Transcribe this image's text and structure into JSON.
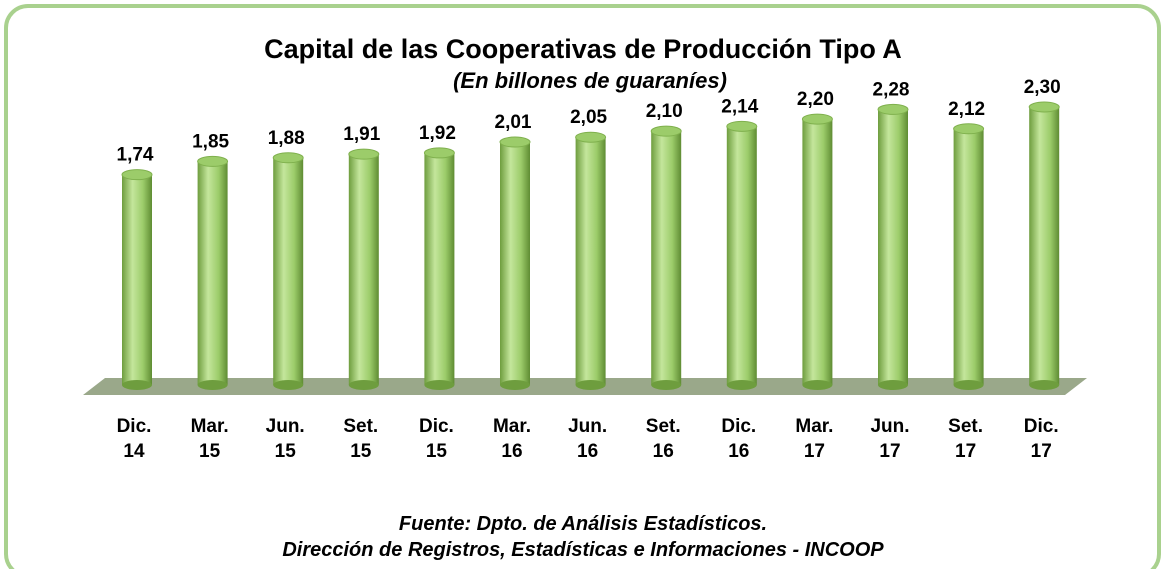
{
  "chart_data": {
    "type": "bar",
    "title": "Capital de las Cooperativas de Producción Tipo A",
    "subtitle": "(En billones de guaraníes)",
    "categories": [
      [
        "Dic.",
        "14"
      ],
      [
        "Mar.",
        "15"
      ],
      [
        "Jun.",
        "15"
      ],
      [
        "Set.",
        "15"
      ],
      [
        "Dic.",
        "15"
      ],
      [
        "Mar.",
        "16"
      ],
      [
        "Jun.",
        "16"
      ],
      [
        "Set.",
        "16"
      ],
      [
        "Dic.",
        "16"
      ],
      [
        "Mar.",
        "17"
      ],
      [
        "Jun.",
        "17"
      ],
      [
        "Set.",
        "17"
      ],
      [
        "Dic.",
        "17"
      ]
    ],
    "values": [
      1.74,
      1.85,
      1.88,
      1.91,
      1.92,
      2.01,
      2.05,
      2.1,
      2.14,
      2.2,
      2.28,
      2.12,
      2.3
    ],
    "value_labels": [
      "1,74",
      "1,85",
      "1,88",
      "1,91",
      "1,92",
      "2,01",
      "2,05",
      "2,10",
      "2,14",
      "2,20",
      "2,28",
      "2,12",
      "2,30"
    ],
    "color": "#9ccc6a",
    "source": [
      "Fuente: Dpto. de Análisis Estadísticos.",
      "Dirección de Registros, Estadísticas e Informaciones - INCOOP"
    ]
  }
}
